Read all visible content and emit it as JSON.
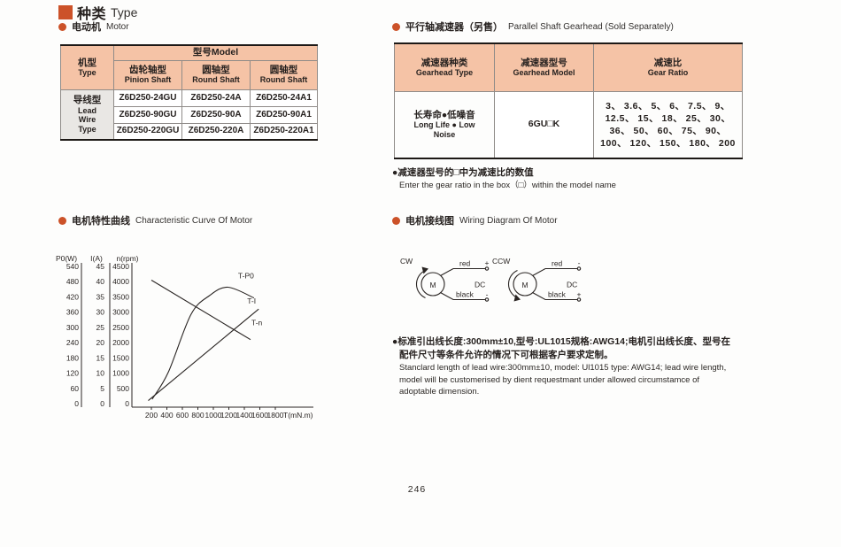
{
  "page": {
    "title_zh": "种类",
    "title_en": "Type",
    "page_number": "246"
  },
  "colors": {
    "accent": "#cc5229",
    "table_header_bg": "#f5c3a6",
    "group_cell_bg": "#e9e7e4"
  },
  "motor": {
    "heading_zh": "电动机",
    "heading_en": "Motor",
    "table": {
      "type_header_zh": "机型",
      "type_header_en": "Type",
      "model_header": "型号Model",
      "columns": [
        {
          "zh": "齿轮轴型",
          "en": "Pinion Shaft"
        },
        {
          "zh": "圆轴型",
          "en": "Round Shaft"
        },
        {
          "zh": "圆轴型",
          "en": "Round Shaft"
        }
      ],
      "row_group_zh": "导线型",
      "row_group_en": "Lead Wire Type",
      "rows": [
        [
          "Z6D250-24GU",
          "Z6D250-24A",
          "Z6D250-24A1"
        ],
        [
          "Z6D250-90GU",
          "Z6D250-90A",
          "Z6D250-90A1"
        ],
        [
          "Z6D250-220GU",
          "Z6D250-220A",
          "Z6D250-220A1"
        ]
      ]
    }
  },
  "gearhead": {
    "heading_zh": "平行轴减速器（另售）",
    "heading_en": "Parallel Shaft Gearhead (Sold Separately)",
    "table": {
      "headers": [
        {
          "zh": "减速器种类",
          "en": "Gearhead Type"
        },
        {
          "zh": "减速器型号",
          "en": "Gearhead Model"
        },
        {
          "zh": "减速比",
          "en": "Gear Ratio"
        }
      ],
      "row": {
        "type_zh": "长寿命●低噪音",
        "type_en1": "Long Life ● Low",
        "type_en2": "Noise",
        "model": "6GU□K",
        "ratio_lines": [
          "3、 3.6、 5、 6、 7.5、 9、",
          "12.5、 15、 18、 25、 30、",
          "36、 50、 60、 75、 90、",
          "100、 120、 150、 180、 200"
        ]
      }
    },
    "note_zh": "●减速器型号的□中为减速比的数值",
    "note_en": "Enter the gear ratio in the box（□）within the model name"
  },
  "curve_section": {
    "heading_zh": "电机特性曲线",
    "heading_en": "Characteristic Curve Of Motor"
  },
  "chart_data": {
    "type": "line",
    "title": "Characteristic Curve Of Motor",
    "xlabel": "T(mN.m)",
    "x_ticks": [
      200,
      400,
      600,
      800,
      1000,
      1200,
      1400,
      1600,
      1800
    ],
    "xlim": [
      150,
      1850
    ],
    "grid": false,
    "legend_position": "inline-labels",
    "axes": [
      {
        "label": "P0(W)",
        "ticks": [
          0,
          60,
          120,
          180,
          240,
          300,
          360,
          420,
          480,
          540
        ]
      },
      {
        "label": "I(A)",
        "ticks": [
          0,
          5,
          10,
          15,
          20,
          25,
          30,
          35,
          40,
          45
        ]
      },
      {
        "label": "n(rpm)",
        "ticks": [
          0,
          500,
          1000,
          1500,
          2000,
          2500,
          3000,
          3500,
          4000,
          4500
        ]
      }
    ],
    "series": [
      {
        "name": "T-P0",
        "axis": "P0(W)",
        "shape": "curve",
        "points": [
          [
            210,
            17
          ],
          [
            420,
            125
          ],
          [
            710,
            350
          ],
          [
            950,
            425
          ],
          [
            1190,
            458
          ],
          [
            1525,
            416
          ]
        ]
      },
      {
        "name": "T-I",
        "axis": "I(A)",
        "shape": "line",
        "points": [
          [
            160,
            1
          ],
          [
            1585,
            31
          ]
        ]
      },
      {
        "name": "T-n",
        "axis": "n(rpm)",
        "shape": "line",
        "points": [
          [
            200,
            4050
          ],
          [
            1480,
            2100
          ]
        ]
      }
    ]
  },
  "wiring": {
    "heading_zh": "电机接线图",
    "heading_en": "Wiring Diagram Of Motor",
    "diagrams": [
      {
        "direction": "CW",
        "motor_label": "M",
        "supply": "DC",
        "wires": [
          {
            "label": "red",
            "terminal": "+"
          },
          {
            "label": "black",
            "terminal": "-"
          }
        ]
      },
      {
        "direction": "CCW",
        "motor_label": "M",
        "supply": "DC",
        "wires": [
          {
            "label": "red",
            "terminal": "-"
          },
          {
            "label": "black",
            "terminal": "+"
          }
        ]
      }
    ],
    "note_zh_line1": "●标准引出线长度:300mm±10,型号:UL1015规格:AWG14;电机引出线长度、型号在",
    "note_zh_line2": "配件尺寸等条件允许的情况下可根据客户要求定制。",
    "note_en_line1": "Stanclard length of lead wire:300mm±10, model: Ul1015 type: AWG14; lead wire length,",
    "note_en_line2": "model will be customerised by dient requestmant under allowed  circumstamce of",
    "note_en_line3": "adoptable  dimension."
  }
}
